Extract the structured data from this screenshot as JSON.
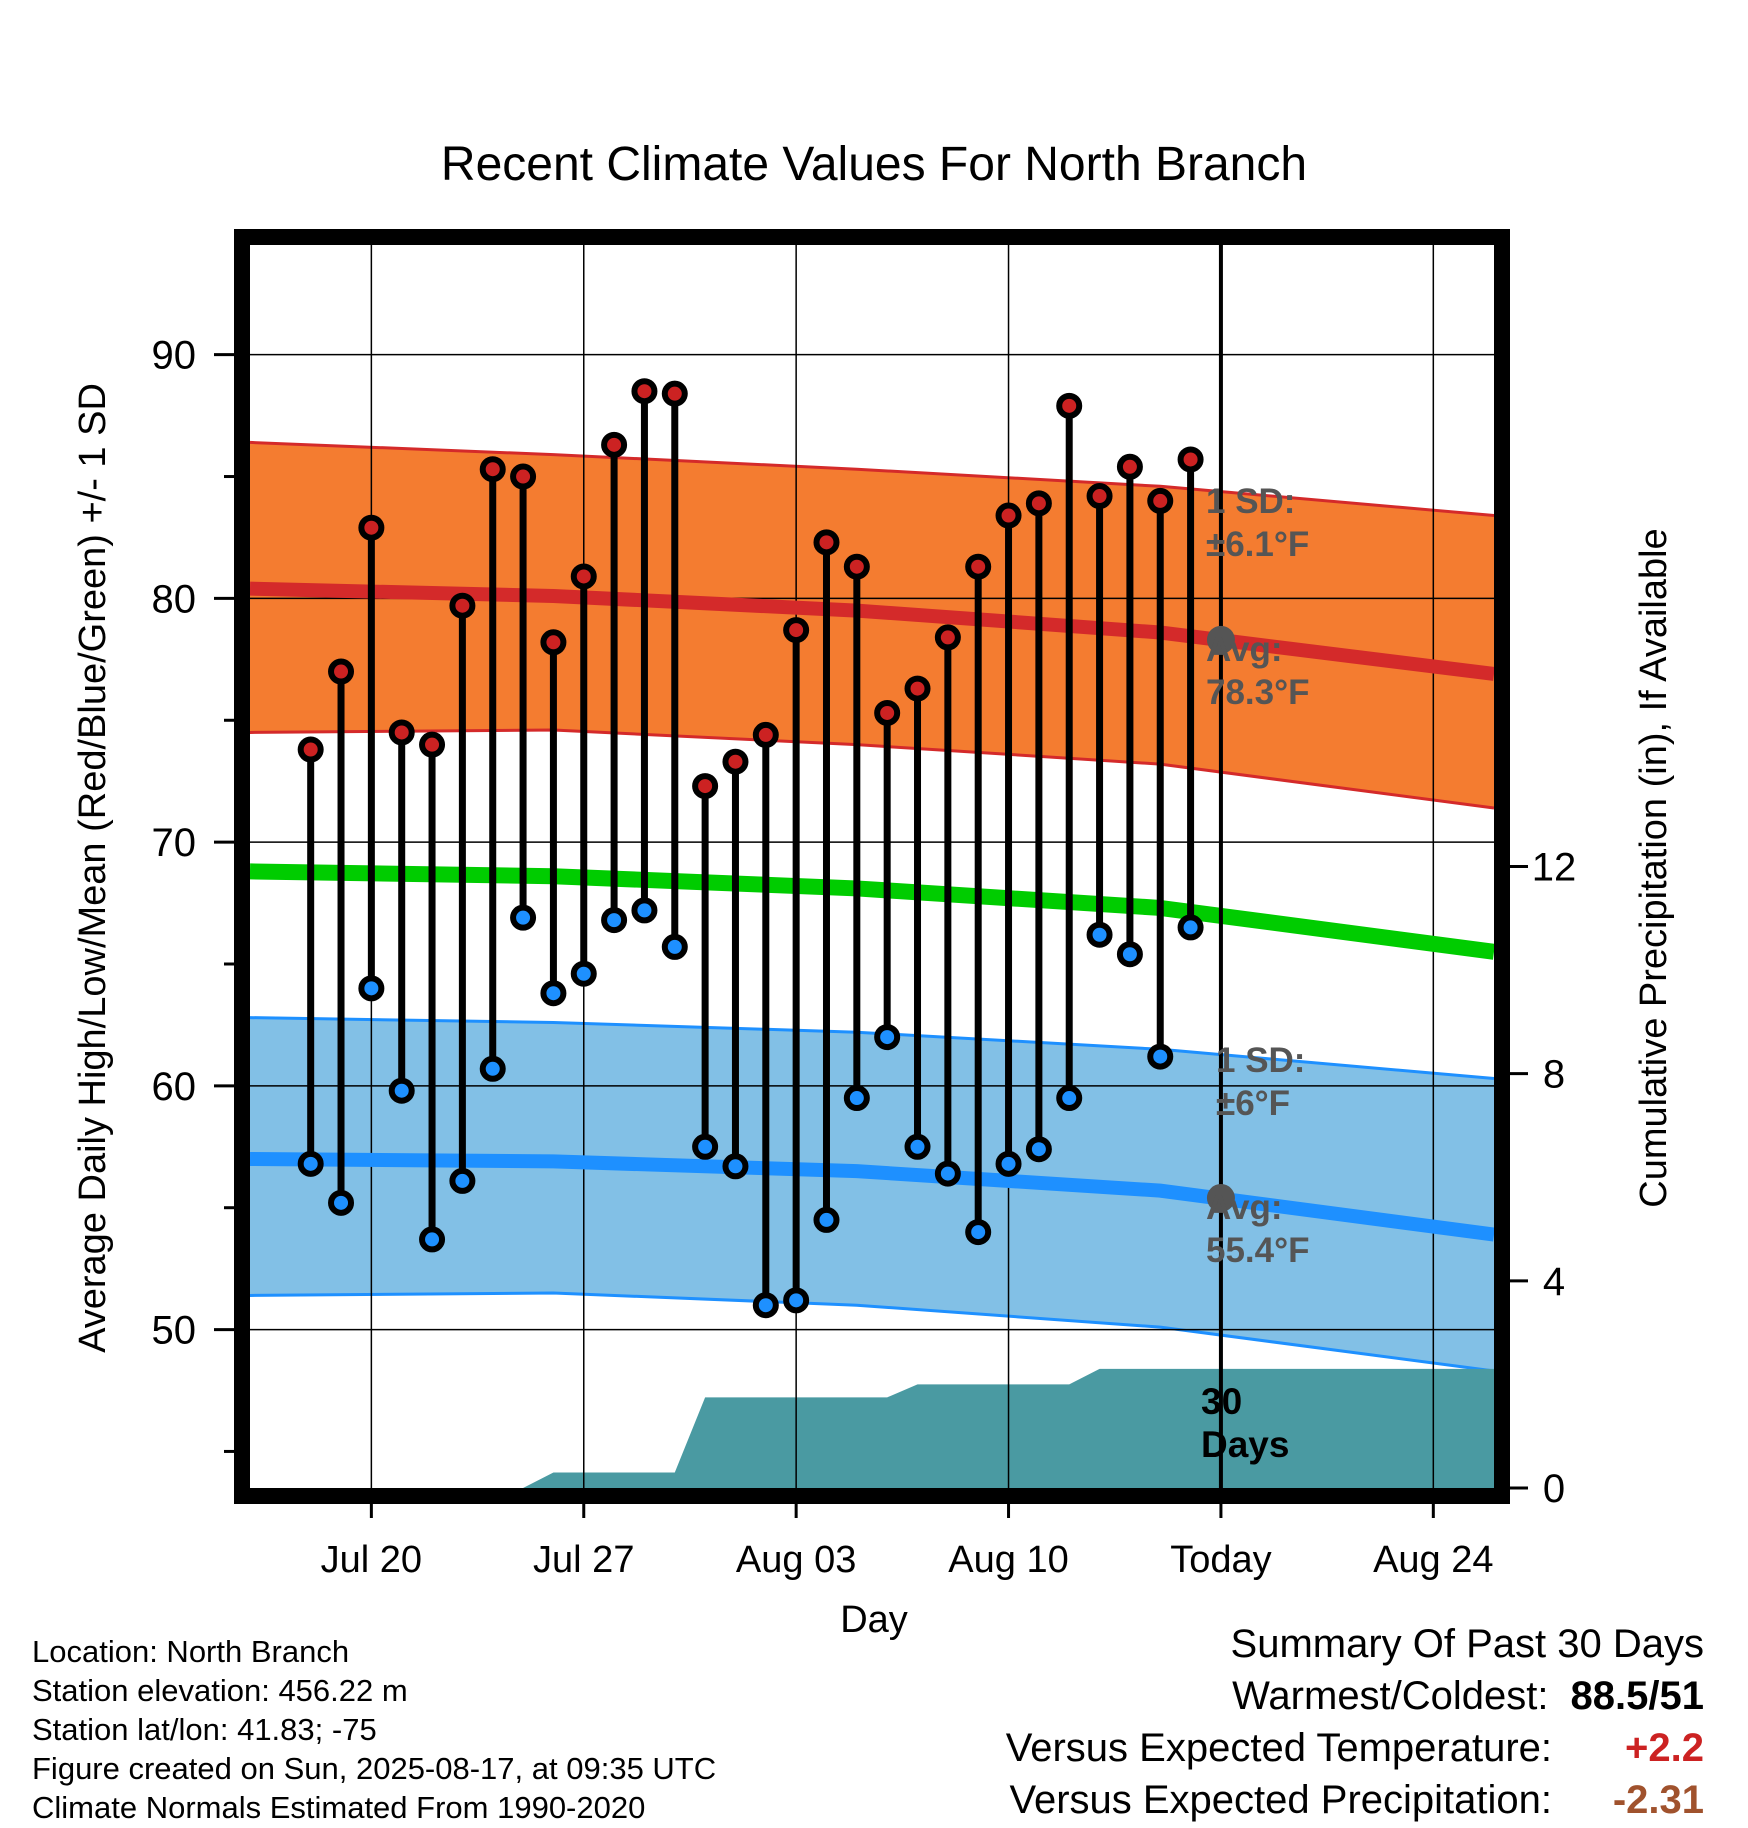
{
  "chart_data": {
    "type": "line",
    "title": "Recent Climate Values For North Branch",
    "xlabel": "Day",
    "ylabel": "Average Daily High/Low/Mean (Red/Blue/Green) +/- 1 SD",
    "y2label": "Cumulative Precipitation (in), If Available",
    "xlim": [
      "2025-07-16",
      "2025-08-26"
    ],
    "ylim": [
      43.5,
      94.5
    ],
    "y_ticks": [
      50,
      60,
      70,
      80,
      90
    ],
    "y2lim": [
      0,
      24
    ],
    "y2_ticks": [
      0,
      4,
      8,
      12
    ],
    "x_ticks": [
      {
        "date": "2025-07-20",
        "label": "Jul 20"
      },
      {
        "date": "2025-07-27",
        "label": "Jul 27"
      },
      {
        "date": "2025-08-03",
        "label": "Aug 03"
      },
      {
        "date": "2025-08-10",
        "label": "Aug 10"
      },
      {
        "date": "2025-08-17",
        "label": "Today"
      },
      {
        "date": "2025-08-24",
        "label": "Aug 24"
      }
    ],
    "today": "2025-08-17",
    "grid": true,
    "observed": {
      "dates": [
        "2025-07-18",
        "2025-07-19",
        "2025-07-20",
        "2025-07-21",
        "2025-07-22",
        "2025-07-23",
        "2025-07-24",
        "2025-07-25",
        "2025-07-26",
        "2025-07-27",
        "2025-07-28",
        "2025-07-29",
        "2025-07-30",
        "2025-07-31",
        "2025-08-01",
        "2025-08-02",
        "2025-08-03",
        "2025-08-04",
        "2025-08-05",
        "2025-08-06",
        "2025-08-07",
        "2025-08-08",
        "2025-08-09",
        "2025-08-10",
        "2025-08-11",
        "2025-08-12",
        "2025-08-13",
        "2025-08-14",
        "2025-08-15",
        "2025-08-16"
      ],
      "high": [
        73.8,
        77.0,
        82.9,
        74.5,
        74.0,
        79.7,
        85.3,
        85.0,
        78.2,
        80.9,
        86.3,
        88.5,
        88.4,
        72.3,
        73.3,
        74.4,
        78.7,
        82.3,
        81.3,
        75.3,
        76.3,
        78.4,
        81.3,
        83.4,
        83.9,
        87.9,
        84.2,
        85.4,
        84.0,
        85.7
      ],
      "low": [
        56.8,
        55.2,
        64.0,
        59.8,
        53.7,
        56.1,
        60.7,
        66.9,
        63.8,
        64.6,
        66.8,
        67.2,
        65.7,
        57.5,
        56.7,
        51.0,
        51.2,
        54.5,
        59.5,
        62.0,
        57.5,
        56.4,
        54.0,
        56.8,
        57.4,
        59.5,
        66.2,
        65.4,
        61.2,
        66.5
      ]
    },
    "normals": {
      "dates": [
        "2025-07-16",
        "2025-07-26",
        "2025-08-05",
        "2025-08-15",
        "2025-08-26"
      ],
      "avg_high": [
        80.4,
        80.1,
        79.5,
        78.6,
        76.9
      ],
      "high_upper": [
        86.4,
        85.9,
        85.3,
        84.6,
        83.4
      ],
      "high_lower": [
        74.5,
        74.6,
        74.0,
        73.2,
        71.4
      ],
      "avg_mean": [
        68.8,
        68.6,
        68.1,
        67.3,
        65.5
      ],
      "avg_low": [
        57.0,
        56.9,
        56.5,
        55.7,
        53.9
      ],
      "low_upper": [
        62.8,
        62.6,
        62.2,
        61.5,
        60.3
      ],
      "low_lower": [
        51.4,
        51.5,
        51.0,
        50.1,
        48.3
      ]
    },
    "precip_cumulative": {
      "dates": [
        "2025-07-16",
        "2025-07-25",
        "2025-07-26",
        "2025-07-29",
        "2025-07-30",
        "2025-07-31",
        "2025-08-06",
        "2025-08-07",
        "2025-08-12",
        "2025-08-13",
        "2025-08-26"
      ],
      "values": [
        0,
        0,
        0.3,
        0.3,
        0.3,
        1.75,
        1.75,
        2.0,
        2.0,
        2.3,
        2.3
      ]
    },
    "annotations": {
      "high_sd_label": "1 SD:",
      "high_sd_value": "±6.1°F",
      "high_avg_label": "Avg:",
      "high_avg_value": "78.3°F",
      "low_sd_label": "1 SD:",
      "low_sd_value": "±6°F",
      "low_avg_label": "Avg:",
      "low_avg_value": "55.4°F",
      "precip_label_line1": "30",
      "precip_label_line2": "Days",
      "today_high_avg": 78.3,
      "today_low_avg": 55.4
    },
    "colors": {
      "high_band": "#f47c30",
      "high_line": "#d42a2a",
      "mean_line": "#00cc00",
      "low_band": "#82c0e6",
      "low_line": "#1e90ff",
      "precip_fill": "#4a9aa2",
      "high_marker": "#cc2222",
      "low_marker": "#1e90ff",
      "annotation_text": "#555555"
    }
  },
  "info": {
    "location": "Location: North Branch",
    "elevation": "Station elevation: 456.22 m",
    "latlon": "Station lat/lon: 41.83; -75",
    "created": "Figure created on Sun, 2025-08-17, at 09:35 UTC",
    "normals": "Climate Normals Estimated From 1990-2020"
  },
  "summary": {
    "title": "Summary Of Past 30 Days",
    "warmest_label": "Warmest/Coldest:",
    "warmest_value": "88.5/51",
    "temp_label": "Versus Expected Temperature:",
    "temp_value": "+2.2",
    "temp_color": "#cc2222",
    "precip_label": "Versus Expected Precipitation:",
    "precip_value": "-2.31",
    "precip_color": "#a0522d"
  }
}
